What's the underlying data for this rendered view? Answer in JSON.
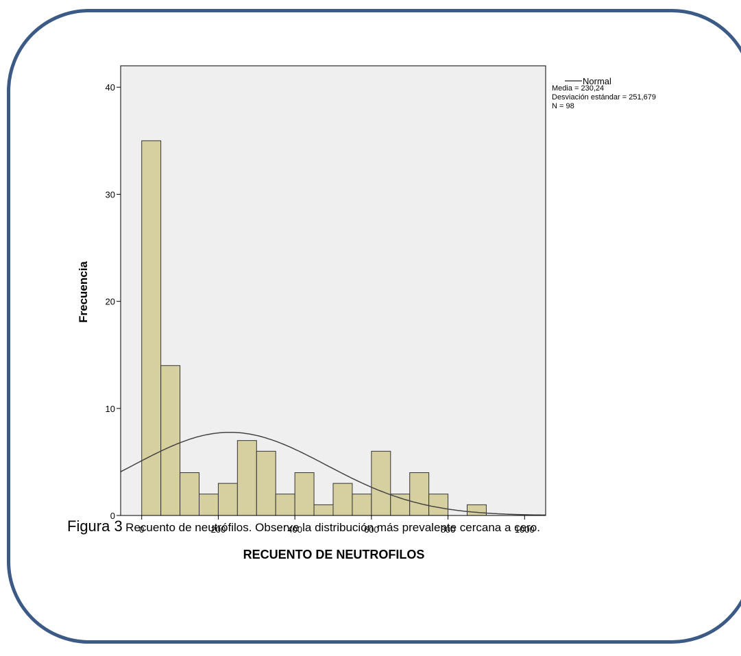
{
  "caption": {
    "label": "Figura 3",
    "text": "Recuento de neutrófilos. Observe la distribución más prevalente cercana a cero."
  },
  "colors": {
    "frame": "#3c5a86",
    "plot_bg": "#efefef",
    "bar_fill": "#d6d0a1",
    "bar_stroke": "#333333",
    "curve": "#444444"
  },
  "chart_data": {
    "type": "bar",
    "xlabel": "RECUENTO DE NEUTROFILOS",
    "ylabel": "Frecuencia",
    "xlim": [
      -55,
      1055
    ],
    "ylim": [
      0,
      42
    ],
    "xticks": [
      0,
      200,
      400,
      600,
      800,
      1000
    ],
    "yticks": [
      0,
      10,
      20,
      30,
      40
    ],
    "bin_width": 50,
    "bins": [
      {
        "start": 0,
        "value": 35
      },
      {
        "start": 50,
        "value": 14
      },
      {
        "start": 100,
        "value": 4
      },
      {
        "start": 150,
        "value": 2
      },
      {
        "start": 200,
        "value": 3
      },
      {
        "start": 250,
        "value": 7
      },
      {
        "start": 300,
        "value": 6
      },
      {
        "start": 350,
        "value": 2
      },
      {
        "start": 400,
        "value": 4
      },
      {
        "start": 450,
        "value": 1
      },
      {
        "start": 500,
        "value": 3
      },
      {
        "start": 550,
        "value": 2
      },
      {
        "start": 600,
        "value": 6
      },
      {
        "start": 650,
        "value": 2
      },
      {
        "start": 700,
        "value": 4
      },
      {
        "start": 750,
        "value": 2
      },
      {
        "start": 850,
        "value": 1
      }
    ],
    "normal_curve": {
      "mean": 230.24,
      "sd": 251.679,
      "n": 98
    },
    "legend": {
      "series_name": "Normal",
      "stats": [
        "Media = 230,24",
        "Desviación estándar = 251,679",
        "N = 98"
      ],
      "position": "top-right"
    }
  }
}
